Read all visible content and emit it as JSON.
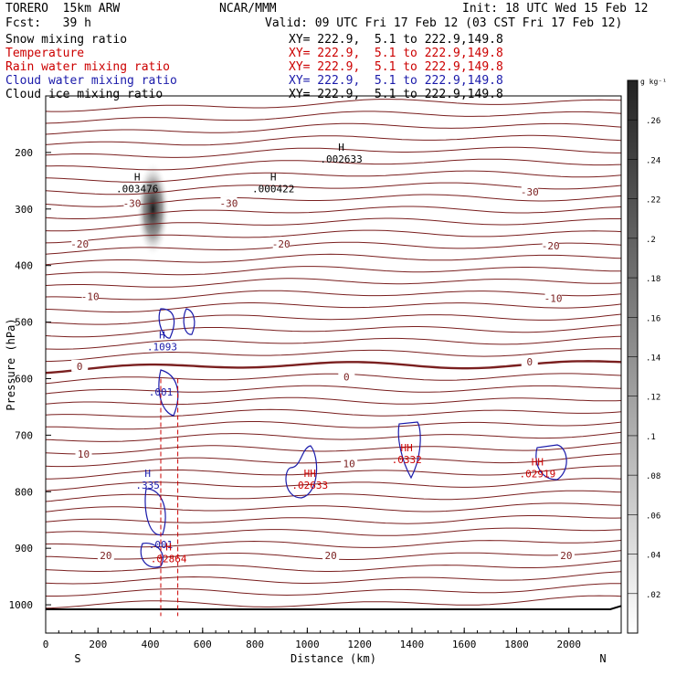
{
  "header": {
    "model": "TORERO  15km ARW",
    "center": "NCAR/MMM",
    "init": "Init: 18 UTC Wed 15 Feb 12",
    "fcst": "Fcst:   39 h",
    "valid": "Valid: 09 UTC Fri 17 Feb 12 (03 CST Fri 17 Feb 12)"
  },
  "fields": [
    {
      "name": "Snow mixing ratio",
      "xy": "XY= 222.9,  5.1 to 222.9,149.8",
      "color": "#000000"
    },
    {
      "name": "Temperature",
      "xy": "XY= 222.9,  5.1 to 222.9,149.8",
      "color": "#cc0000"
    },
    {
      "name": "Rain water mixing ratio",
      "xy": "XY= 222.9,  5.1 to 222.9,149.8",
      "color": "#cc0000"
    },
    {
      "name": "Cloud water mixing ratio",
      "xy": "XY= 222.9,  5.1 to 222.9,149.8",
      "color": "#1a1aaa"
    },
    {
      "name": "Cloud ice mixing ratio",
      "xy": "XY= 222.9,  5.1 to 222.9,149.8",
      "color": "#000000"
    }
  ],
  "chart_data": {
    "type": "line",
    "xlabel": "Distance (km)",
    "ylabel": "Pressure (hPa)",
    "xlim": [
      0,
      2200
    ],
    "ylim": [
      1050,
      100
    ],
    "x_ticks": [
      0,
      200,
      400,
      600,
      800,
      1000,
      1200,
      1400,
      1600,
      1800,
      2000
    ],
    "y_ticks": [
      200,
      300,
      400,
      500,
      600,
      700,
      800,
      900,
      1000
    ],
    "x_end_labels": {
      "left": "S",
      "right": "N"
    },
    "colorbar": {
      "units": "g kg⁻¹",
      "min": 0,
      "max": 0.28,
      "ticks": [
        ".02",
        ".04",
        ".06",
        ".08",
        ".1",
        ".12",
        ".14",
        ".16",
        ".18",
        ".2",
        ".22",
        ".24",
        ".26"
      ]
    },
    "temperature_labels": [
      {
        "text": "-30",
        "x": 330,
        "y": 290
      },
      {
        "text": "-30",
        "x": 700,
        "y": 290
      },
      {
        "text": "-30",
        "x": 1850,
        "y": 270
      },
      {
        "text": "-20",
        "x": 130,
        "y": 362
      },
      {
        "text": "-20",
        "x": 900,
        "y": 362
      },
      {
        "text": "-20",
        "x": 1930,
        "y": 365
      },
      {
        "text": "-10",
        "x": 170,
        "y": 455
      },
      {
        "text": "-10",
        "x": 1940,
        "y": 458
      },
      {
        "text": "0",
        "x": 130,
        "y": 578
      },
      {
        "text": "0",
        "x": 1150,
        "y": 597
      },
      {
        "text": "0",
        "x": 1850,
        "y": 570
      },
      {
        "text": "10",
        "x": 145,
        "y": 733
      },
      {
        "text": "10",
        "x": 1160,
        "y": 750
      },
      {
        "text": "20",
        "x": 230,
        "y": 913
      },
      {
        "text": "20",
        "x": 1090,
        "y": 913
      },
      {
        "text": "20",
        "x": 1990,
        "y": 913
      }
    ],
    "max_labels": [
      {
        "text": "H",
        "value": ".003476",
        "x": 350,
        "y": 266,
        "color": "#000000"
      },
      {
        "text": "H",
        "value": ".000422",
        "x": 870,
        "y": 266,
        "color": "#000000"
      },
      {
        "text": "H",
        "value": ".002633",
        "x": 1130,
        "y": 213,
        "color": "#000000"
      },
      {
        "text": "H",
        "value": ".1093",
        "x": 445,
        "y": 545,
        "color": "#1a1aaa"
      },
      {
        "text": "",
        "value": ".001",
        "x": 440,
        "y": 625,
        "color": "#1a1aaa"
      },
      {
        "text": "H",
        "value": ".335",
        "x": 390,
        "y": 790,
        "color": "#1a1aaa"
      },
      {
        "text": "",
        "value": ".001",
        "x": 440,
        "y": 895,
        "color": "#1a1aaa"
      },
      {
        "text": "H",
        "value": ".02864",
        "x": 470,
        "y": 920,
        "color": "#cc0000"
      },
      {
        "text": "HH",
        "value": ".02633",
        "x": 1010,
        "y": 790,
        "color": "#cc0000"
      },
      {
        "text": "HH",
        "value": ".0332",
        "x": 1380,
        "y": 745,
        "color": "#cc0000"
      },
      {
        "text": "HH",
        "value": ".02919",
        "x": 1880,
        "y": 770,
        "color": "#cc0000"
      }
    ]
  }
}
